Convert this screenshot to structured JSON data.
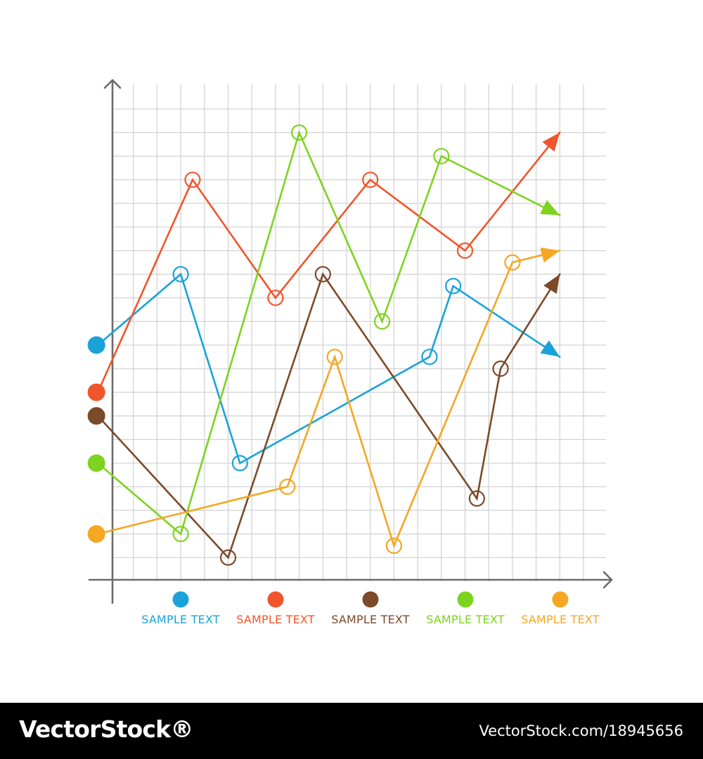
{
  "chart_data": {
    "type": "line",
    "title": "",
    "xlabel": "",
    "ylabel": "",
    "x_range": [
      0,
      20
    ],
    "y_range": [
      0,
      20
    ],
    "grid": true,
    "legend_position": "bottom",
    "series": [
      {
        "name": "SAMPLE TEXT",
        "color": "#1aa3d8",
        "points": [
          [
            -0.5,
            10
          ],
          [
            3,
            13
          ],
          [
            5.5,
            5
          ],
          [
            13.5,
            9.5
          ],
          [
            14.5,
            12.5
          ],
          [
            19,
            9.5
          ]
        ]
      },
      {
        "name": "SAMPLE TEXT",
        "color": "#f0552b",
        "points": [
          [
            -0.5,
            8
          ],
          [
            3.5,
            17
          ],
          [
            7,
            12
          ],
          [
            11,
            17
          ],
          [
            15,
            14
          ],
          [
            19,
            19
          ]
        ]
      },
      {
        "name": "SAMPLE TEXT",
        "color": "#7b4a2a",
        "points": [
          [
            -0.5,
            7
          ],
          [
            5,
            1
          ],
          [
            9,
            13
          ],
          [
            15.5,
            3.5
          ],
          [
            16.5,
            9
          ],
          [
            19,
            13
          ]
        ]
      },
      {
        "name": "SAMPLE TEXT",
        "color": "#7ed321",
        "points": [
          [
            -0.5,
            5
          ],
          [
            3,
            2
          ],
          [
            8,
            19
          ],
          [
            11.5,
            11
          ],
          [
            14,
            18
          ],
          [
            19,
            15.5
          ]
        ]
      },
      {
        "name": "SAMPLE TEXT",
        "color": "#f5a623",
        "points": [
          [
            -0.5,
            2
          ],
          [
            7.5,
            4
          ],
          [
            9.5,
            9.5
          ],
          [
            12,
            1.5
          ],
          [
            17,
            13.5
          ],
          [
            19,
            14
          ]
        ]
      }
    ]
  },
  "footer": {
    "logo": "VectorStock®",
    "url": "VectorStock.com/18945656"
  }
}
